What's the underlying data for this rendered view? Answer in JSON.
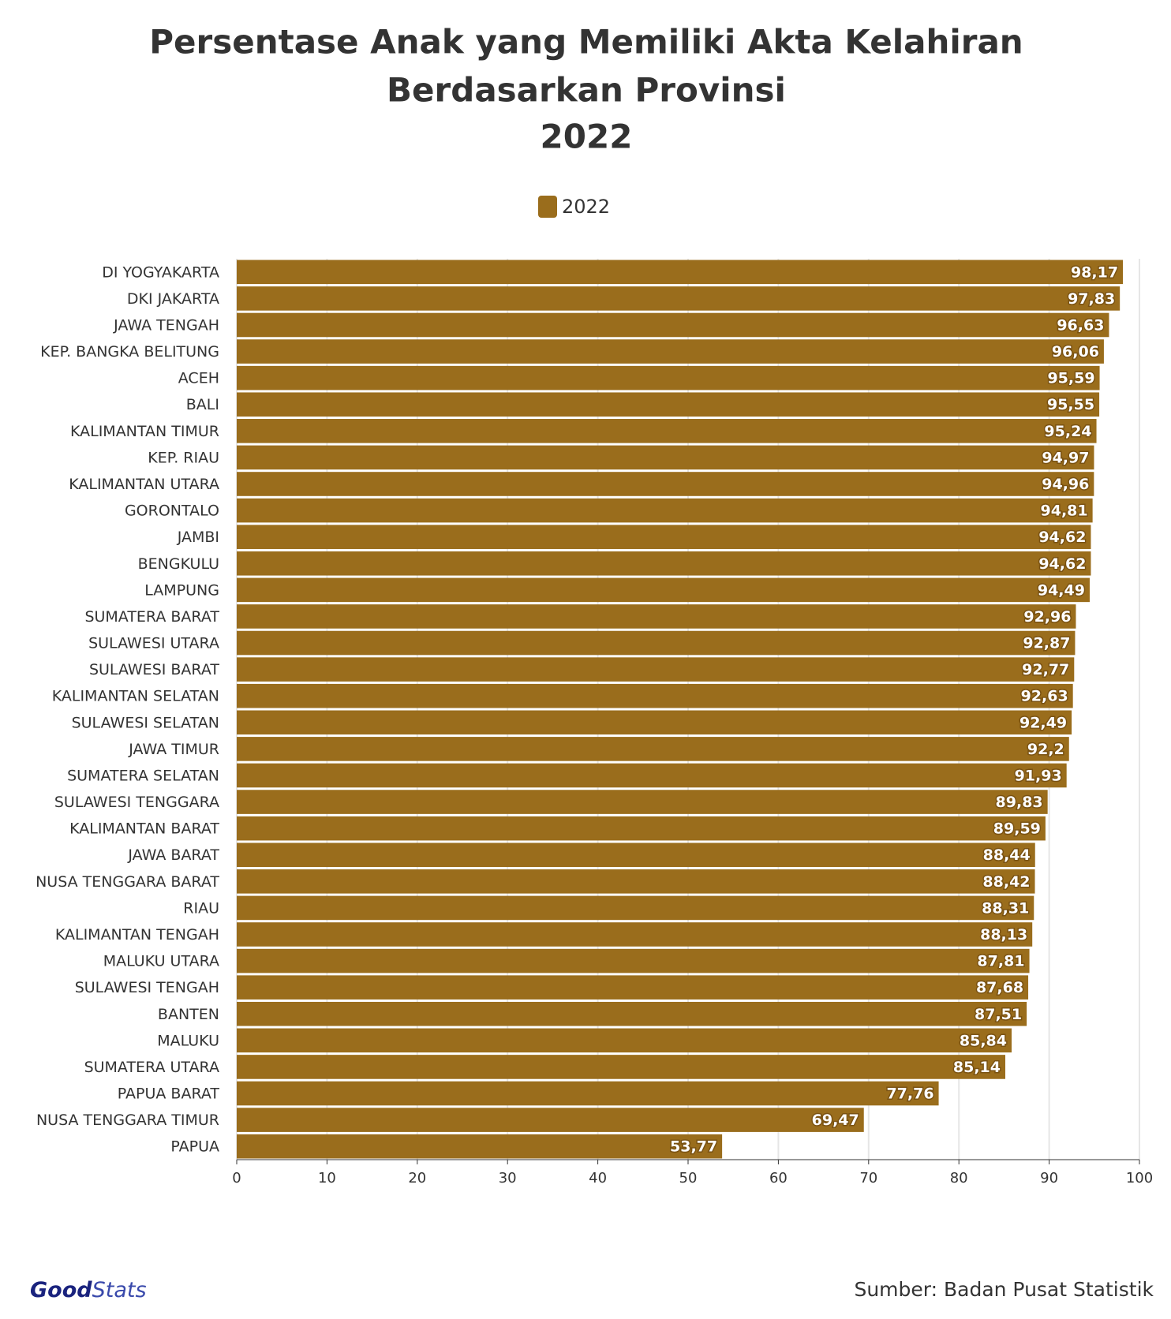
{
  "chart_data": {
    "type": "bar",
    "orientation": "horizontal",
    "title": [
      "Persentase Anak yang Memiliki Akta Kelahiran",
      "Berdasarkan Provinsi",
      "2022"
    ],
    "categories": [
      "DI YOGYAKARTA",
      "DKI JAKARTA",
      "JAWA TENGAH",
      "KEP. BANGKA BELITUNG",
      "ACEH",
      "BALI",
      "KALIMANTAN TIMUR",
      "KEP. RIAU",
      "KALIMANTAN UTARA",
      "GORONTALO",
      "JAMBI",
      "BENGKULU",
      "LAMPUNG",
      "SUMATERA BARAT",
      "SULAWESI UTARA",
      "SULAWESI BARAT",
      "KALIMANTAN SELATAN",
      "SULAWESI SELATAN",
      "JAWA TIMUR",
      "SUMATERA SELATAN",
      "SULAWESI TENGGARA",
      "KALIMANTAN BARAT",
      "JAWA BARAT",
      "NUSA TENGGARA BARAT",
      "RIAU",
      "KALIMANTAN TENGAH",
      "MALUKU UTARA",
      "SULAWESI TENGAH",
      "BANTEN",
      "MALUKU",
      "SUMATERA UTARA",
      "PAPUA BARAT",
      "NUSA TENGGARA TIMUR",
      "PAPUA"
    ],
    "series": [
      {
        "name": "2022",
        "color": "#9a6d1c",
        "values": [
          98.17,
          97.83,
          96.63,
          96.06,
          95.59,
          95.55,
          95.24,
          94.97,
          94.96,
          94.81,
          94.62,
          94.62,
          94.49,
          92.96,
          92.87,
          92.77,
          92.63,
          92.49,
          92.2,
          91.93,
          89.83,
          89.59,
          88.44,
          88.42,
          88.31,
          88.13,
          87.81,
          87.68,
          87.51,
          85.84,
          85.14,
          77.76,
          69.47,
          53.77
        ],
        "value_labels": [
          "98,17",
          "97,83",
          "96,63",
          "96,06",
          "95,59",
          "95,55",
          "95,24",
          "94,97",
          "94,96",
          "94,81",
          "94,62",
          "94,62",
          "94,49",
          "92,96",
          "92,87",
          "92,77",
          "92,63",
          "92,49",
          "92,2",
          "91,93",
          "89,83",
          "89,59",
          "88,44",
          "88,42",
          "88,31",
          "88,13",
          "87,81",
          "87,68",
          "87,51",
          "85,84",
          "85,14",
          "77,76",
          "69,47",
          "53,77"
        ]
      }
    ],
    "xlim": [
      0,
      100
    ],
    "xticks": [
      0,
      10,
      20,
      30,
      40,
      50,
      60,
      70,
      80,
      90,
      100
    ],
    "grid": true,
    "legend_position": "top",
    "source": "Sumber: Badan Pusat Statistik"
  },
  "logo": [
    "Good",
    "Stats"
  ]
}
